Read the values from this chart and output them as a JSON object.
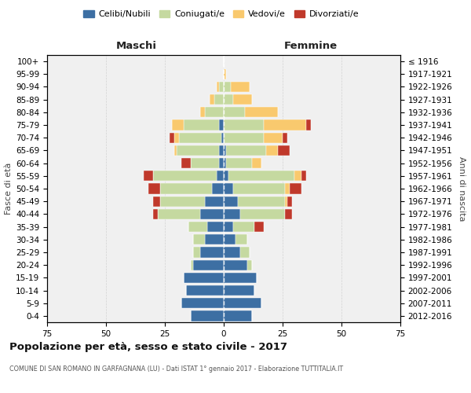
{
  "age_groups": [
    "100+",
    "95-99",
    "90-94",
    "85-89",
    "80-84",
    "75-79",
    "70-74",
    "65-69",
    "60-64",
    "55-59",
    "50-54",
    "45-49",
    "40-44",
    "35-39",
    "30-34",
    "25-29",
    "20-24",
    "15-19",
    "10-14",
    "5-9",
    "0-4"
  ],
  "birth_years": [
    "≤ 1916",
    "1917-1921",
    "1922-1926",
    "1927-1931",
    "1932-1936",
    "1937-1941",
    "1942-1946",
    "1947-1951",
    "1952-1956",
    "1957-1961",
    "1962-1966",
    "1967-1971",
    "1972-1976",
    "1977-1981",
    "1982-1986",
    "1987-1991",
    "1992-1996",
    "1997-2001",
    "2002-2006",
    "2007-2011",
    "2012-2016"
  ],
  "maschi": {
    "celibi": [
      0,
      0,
      0,
      0,
      0,
      2,
      1,
      2,
      2,
      3,
      5,
      8,
      10,
      7,
      8,
      10,
      13,
      17,
      16,
      18,
      14
    ],
    "coniugati": [
      0,
      0,
      2,
      4,
      8,
      15,
      18,
      18,
      12,
      27,
      22,
      19,
      18,
      8,
      5,
      3,
      1,
      0,
      0,
      0,
      0
    ],
    "vedovi": [
      0,
      0,
      1,
      2,
      2,
      5,
      2,
      1,
      0,
      0,
      0,
      0,
      0,
      0,
      0,
      0,
      0,
      0,
      0,
      0,
      0
    ],
    "divorziati": [
      0,
      0,
      0,
      0,
      0,
      0,
      2,
      0,
      4,
      4,
      5,
      3,
      2,
      0,
      0,
      0,
      0,
      0,
      0,
      0,
      0
    ]
  },
  "femmine": {
    "nubili": [
      0,
      0,
      0,
      0,
      0,
      0,
      0,
      1,
      1,
      2,
      4,
      6,
      7,
      4,
      5,
      7,
      10,
      14,
      13,
      16,
      12
    ],
    "coniugate": [
      0,
      0,
      3,
      4,
      9,
      17,
      17,
      17,
      11,
      28,
      22,
      20,
      19,
      9,
      5,
      4,
      2,
      0,
      0,
      0,
      0
    ],
    "vedove": [
      0,
      1,
      8,
      8,
      14,
      18,
      8,
      5,
      4,
      3,
      2,
      1,
      0,
      0,
      0,
      0,
      0,
      0,
      0,
      0,
      0
    ],
    "divorziate": [
      0,
      0,
      0,
      0,
      0,
      2,
      2,
      5,
      0,
      2,
      5,
      2,
      3,
      4,
      0,
      0,
      0,
      0,
      0,
      0,
      0
    ]
  },
  "colors": {
    "celibi": "#3d6fa3",
    "coniugati": "#c5d9a0",
    "vedovi": "#f9c96e",
    "divorziati": "#c0392b"
  },
  "xlim": 75,
  "title": "Popolazione per età, sesso e stato civile - 2017",
  "subtitle": "COMUNE DI SAN ROMANO IN GARFAGNANA (LU) - Dati ISTAT 1° gennaio 2017 - Elaborazione TUTTITALIA.IT",
  "ylabel_left": "Fasce di età",
  "ylabel_right": "Anni di nascita",
  "legend_labels": [
    "Celibi/Nubili",
    "Coniugati/e",
    "Vedovi/e",
    "Divorziati/e"
  ],
  "maschi_label": "Maschi",
  "femmine_label": "Femmine",
  "background_color": "#f0f0f0",
  "grid_color": "#cccccc"
}
